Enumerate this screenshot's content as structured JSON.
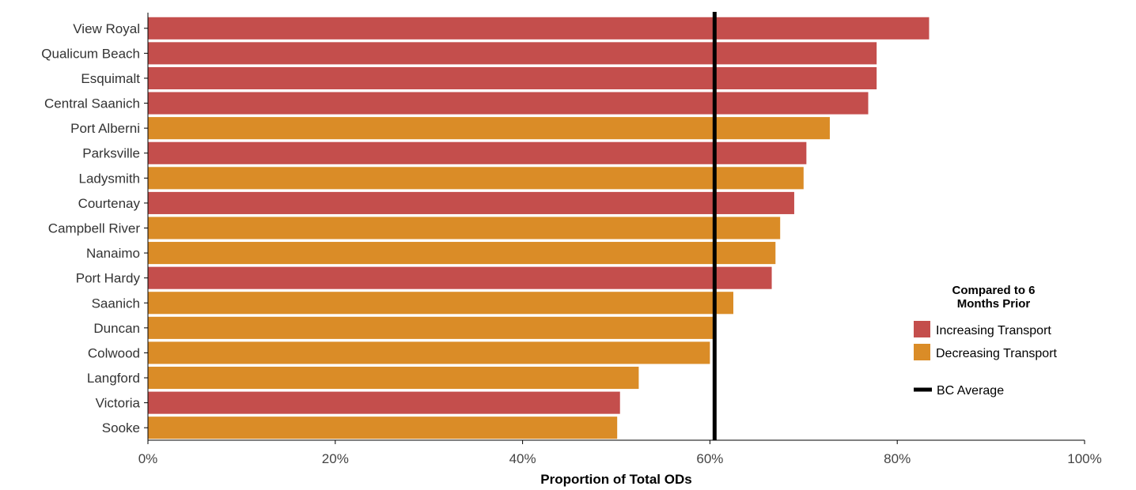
{
  "chart_data": {
    "type": "bar",
    "orientation": "horizontal",
    "title": "",
    "xlabel": "Proportion of Total ODs",
    "ylabel": "",
    "xlim": [
      0,
      100
    ],
    "xticks": [
      "0%",
      "20%",
      "40%",
      "60%",
      "80%",
      "100%"
    ],
    "categories": [
      "View Royal",
      "Qualicum Beach",
      "Esquimalt",
      "Central Saanich",
      "Port Alberni",
      "Parksville",
      "Ladysmith",
      "Courtenay",
      "Campbell River",
      "Nanaimo",
      "Port Hardy",
      "Saanich",
      "Duncan",
      "Colwood",
      "Langford",
      "Victoria",
      "Sooke"
    ],
    "values": [
      83.4,
      77.8,
      77.8,
      76.9,
      72.8,
      70.3,
      70.0,
      69.0,
      67.5,
      67.0,
      66.6,
      62.5,
      60.3,
      60.0,
      52.4,
      50.4,
      50.1
    ],
    "groups": [
      "increasing",
      "increasing",
      "increasing",
      "increasing",
      "decreasing",
      "increasing",
      "decreasing",
      "increasing",
      "decreasing",
      "decreasing",
      "increasing",
      "decreasing",
      "decreasing",
      "decreasing",
      "decreasing",
      "increasing",
      "decreasing"
    ],
    "reference_line": {
      "label": "BC Average",
      "value": 60.5,
      "color": "#000000"
    },
    "legend": {
      "title_line1": "Compared to 6",
      "title_line2": "Months Prior",
      "placement": "right",
      "items": [
        {
          "key": "increasing",
          "label": "Increasing Transport",
          "color": "#c44e4c"
        },
        {
          "key": "decreasing",
          "label": "Decreasing Transport",
          "color": "#da8c27"
        }
      ]
    },
    "grid": false
  }
}
